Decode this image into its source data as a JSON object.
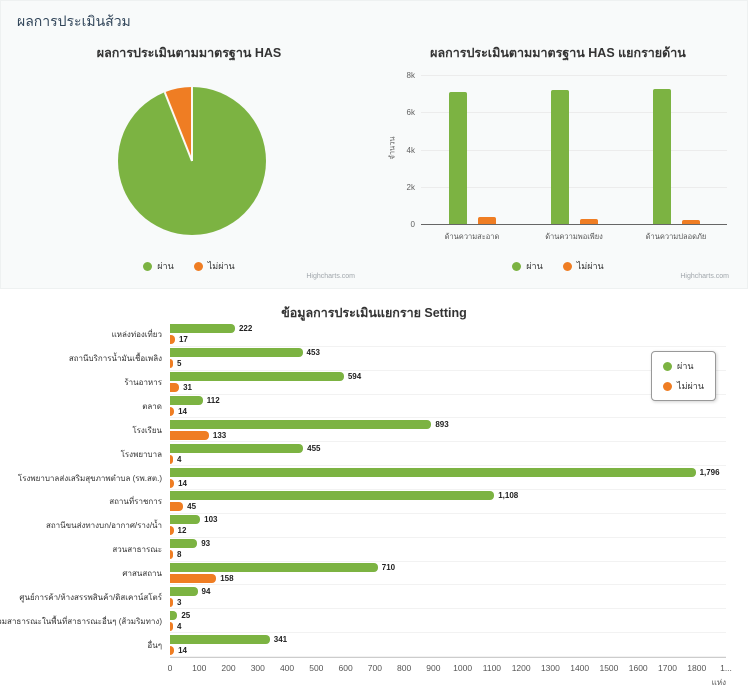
{
  "header": {
    "title": "ผลการประเมินส้วม"
  },
  "colors": {
    "pass": "#7cb342",
    "fail": "#ef7d23"
  },
  "watermark": "Highcharts.com",
  "chart_data": [
    {
      "id": "has-pie",
      "type": "pie",
      "title": "ผลการประเมินตามมาตรฐาน HAS",
      "legend_position": "bottom",
      "series": [
        {
          "name": "ผ่าน",
          "value_pct": 94,
          "color_key": "pass"
        },
        {
          "name": "ไม่ผ่าน",
          "value_pct": 6,
          "color_key": "fail"
        }
      ]
    },
    {
      "id": "has-aspects",
      "type": "bar",
      "title": "ผลการประเมินตามมาตรฐาน HAS แยกรายด้าน",
      "categories": [
        "ด้านความสะอาด",
        "ด้านความพอเพียง",
        "ด้านความปลอดภัย"
      ],
      "series": [
        {
          "name": "ผ่าน",
          "color_key": "pass",
          "values": [
            7100,
            7200,
            7270
          ]
        },
        {
          "name": "ไม่ผ่าน",
          "color_key": "fail",
          "values": [
            390,
            290,
            220
          ]
        }
      ],
      "ylabel": "จำนวน",
      "ylim": [
        0,
        8000
      ],
      "yticks": [
        "8k",
        "6k",
        "4k",
        "2k",
        "0"
      ],
      "grid": true,
      "legend_position": "bottom"
    },
    {
      "id": "setting",
      "type": "bar-horizontal",
      "title": "ข้อมูลการประเมินแยกราย Setting",
      "categories": [
        "แหล่งท่องเที่ยว",
        "สถานีบริการน้ำมันเชื้อเพลิง",
        "ร้านอาหาร",
        "ตลาด",
        "โรงเรียน",
        "โรงพยาบาล",
        "โรงพยาบาลส่งเสริมสุขภาพตำบล (รพ.สต.)",
        "สถานที่ราชการ",
        "สถานีขนส่งทางบก/อากาศ/ราง/น้ำ",
        "สวนสาธารณะ",
        "ศาสนสถาน",
        "ศูนย์การค้า/ห้างสรรพสินค้า/ดิสเคาน์สโตร์",
        "ส้วมสาธารณะในพื้นที่สาธารณะอื่นๆ (ส้วมริมทาง)",
        "อื่นๆ"
      ],
      "series": [
        {
          "name": "ผ่าน",
          "color_key": "pass",
          "values": [
            222,
            453,
            594,
            112,
            893,
            455,
            1796,
            1108,
            103,
            93,
            710,
            94,
            25,
            341
          ]
        },
        {
          "name": "ไม่ผ่าน",
          "color_key": "fail",
          "values": [
            17,
            5,
            31,
            14,
            133,
            4,
            14,
            45,
            12,
            8,
            158,
            3,
            4,
            14
          ]
        }
      ],
      "xlim": [
        0,
        1900
      ],
      "xticks": [
        "0",
        "100",
        "200",
        "300",
        "400",
        "500",
        "600",
        "700",
        "800",
        "900",
        "1000",
        "1100",
        "1200",
        "1300",
        "1400",
        "1500",
        "1600",
        "1700",
        "1800",
        "1..."
      ],
      "xlabel": "แห่ง",
      "legend_position": "right"
    }
  ]
}
